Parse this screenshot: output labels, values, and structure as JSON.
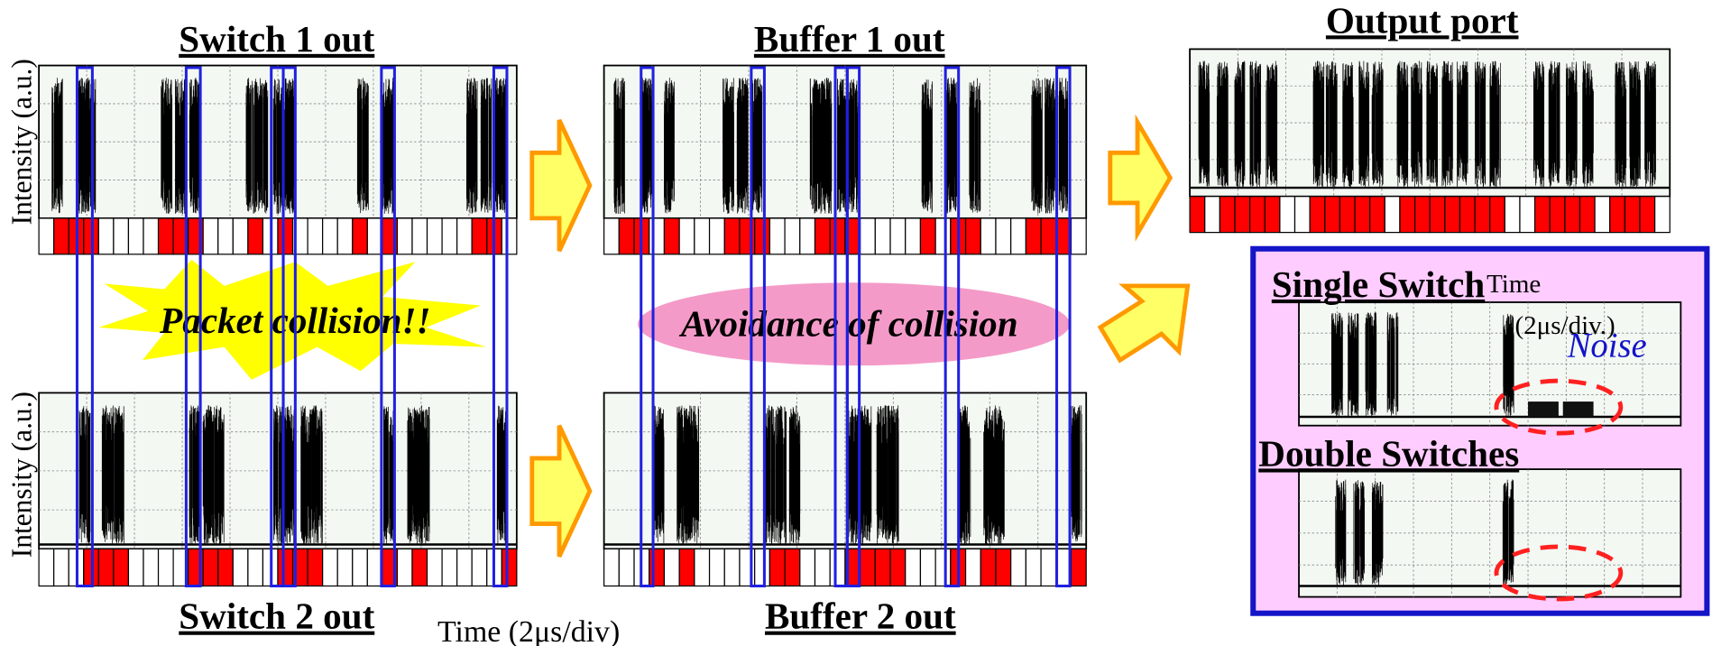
{
  "panels": {
    "switch1": "Switch 1 out",
    "buffer1": "Buffer 1 out",
    "output": "Output port",
    "switch2": "Switch 2 out",
    "buffer2": "Buffer 2 out"
  },
  "axis": {
    "y_top": "Intensity (a.u.)",
    "y_bottom": "Intensity (a.u.)",
    "x": "Time (2μs/div)"
  },
  "callouts": {
    "collision": "Packet collision!!",
    "avoidance": "Avoidance of collision"
  },
  "inset": {
    "single": "Single Switch",
    "time": "Time",
    "time_unit": "(2μs/div.)",
    "noise": "Noise",
    "double": "Double Switches"
  }
}
